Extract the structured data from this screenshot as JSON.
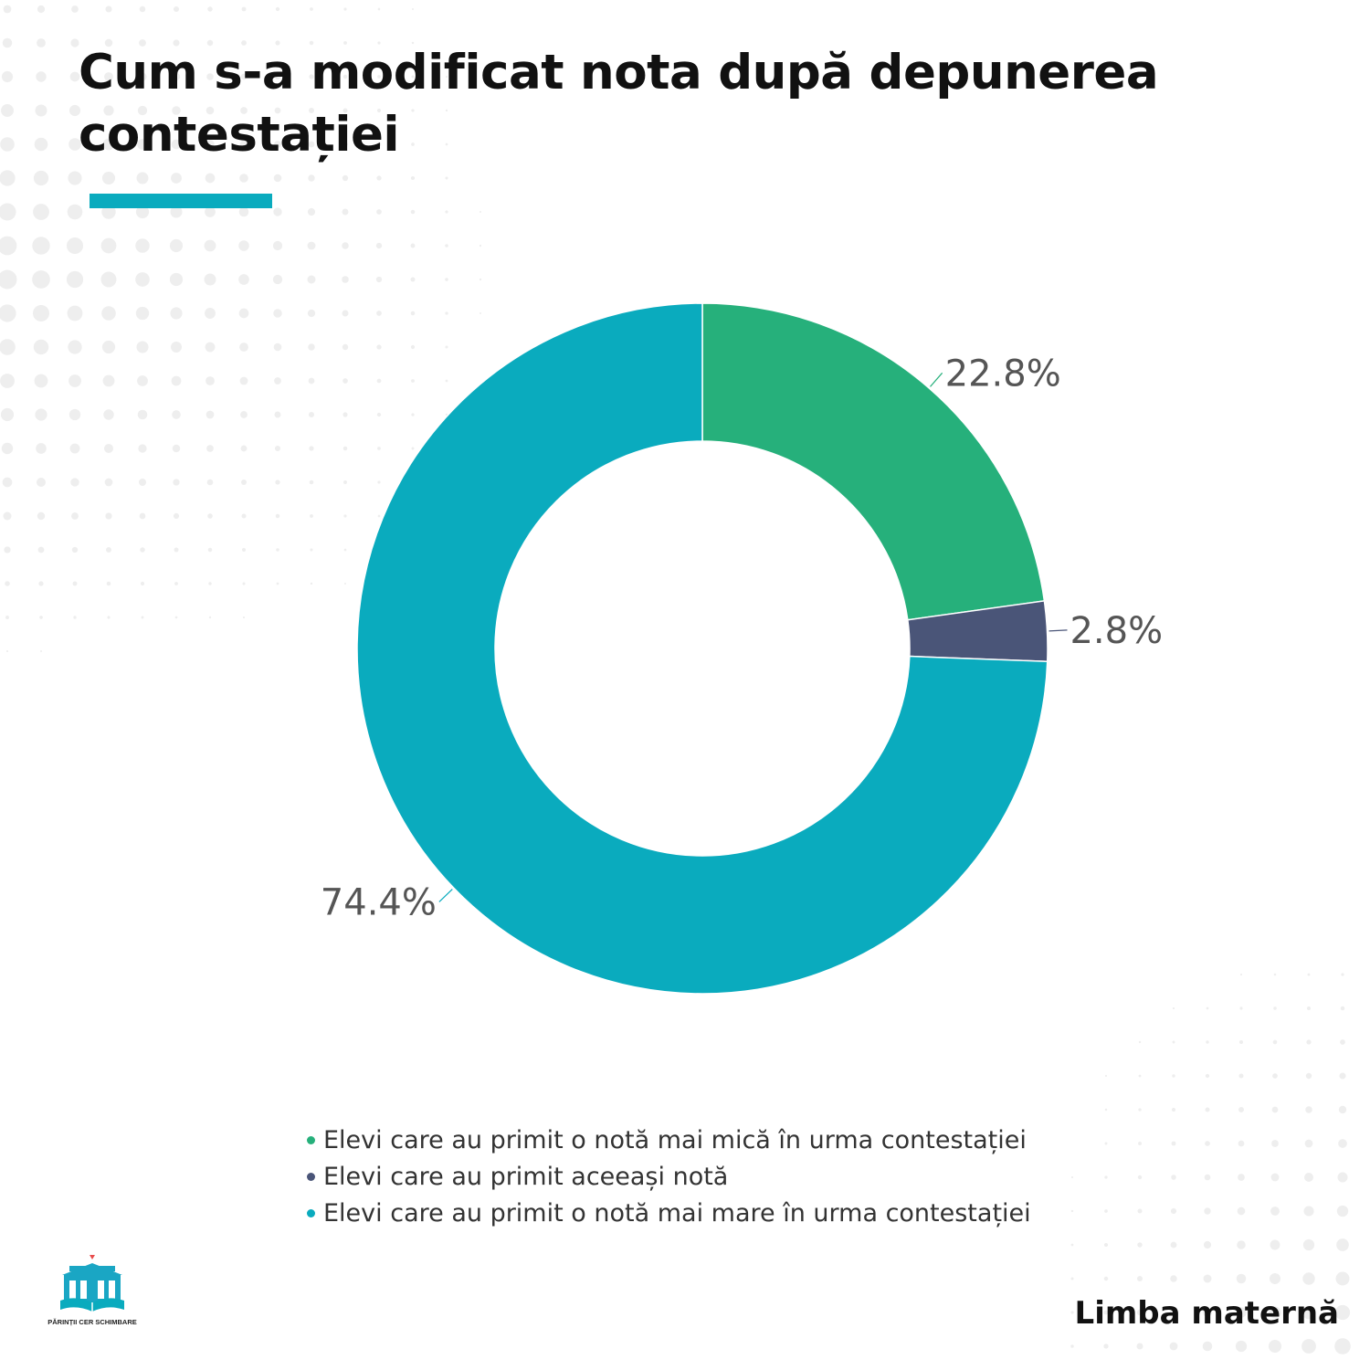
{
  "title": "Cum s-a modificat nota după depunerea contestației",
  "accent_color": "#0aabbe",
  "chart_data": {
    "type": "pie",
    "variant": "donut",
    "start": "12 o'clock, clockwise",
    "legend_position": "bottom",
    "slices": [
      {
        "label": "Elevi care au primit o notă mai mică în urma contestației",
        "value": 22.8,
        "display": "22.8%",
        "color": "#26b07b"
      },
      {
        "label": "Elevi care au primit aceeași notă",
        "value": 2.8,
        "display": "2.8%",
        "color": "#4a5578"
      },
      {
        "label": "Elevi care au primit o notă mai mare în urma contestației",
        "value": 74.4,
        "display": "74.4%",
        "color": "#0aabbe"
      }
    ]
  },
  "logo": {
    "icon": "school-building-book-icon",
    "caption": "PĂRINȚII CER SCHIMBARE"
  },
  "subject": "Limba maternă"
}
